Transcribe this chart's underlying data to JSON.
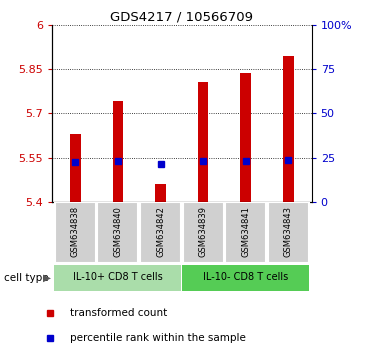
{
  "title": "GDS4217 / 10566709",
  "samples": [
    "GSM634838",
    "GSM634840",
    "GSM634842",
    "GSM634839",
    "GSM634841",
    "GSM634843"
  ],
  "bar_tops": [
    5.63,
    5.74,
    5.46,
    5.805,
    5.835,
    5.895
  ],
  "bar_bottom": 5.4,
  "percentile_values": [
    5.535,
    5.537,
    5.527,
    5.537,
    5.537,
    5.543
  ],
  "ylim": [
    5.4,
    6.0
  ],
  "yticks_left": [
    5.4,
    5.55,
    5.7,
    5.85,
    6.0
  ],
  "ytick_labels_left": [
    "5.4",
    "5.55",
    "5.7",
    "5.85",
    "6"
  ],
  "yticks_right_pct": [
    0,
    25,
    50,
    75,
    100
  ],
  "ytick_labels_right": [
    "0",
    "25",
    "50",
    "75",
    "100%"
  ],
  "bar_color": "#cc0000",
  "percentile_color": "#0000cc",
  "group1_label": "IL-10+ CD8 T cells",
  "group2_label": "IL-10- CD8 T cells",
  "group1_indices": [
    0,
    1,
    2
  ],
  "group2_indices": [
    3,
    4,
    5
  ],
  "group1_color": "#aaddaa",
  "group2_color": "#55cc55",
  "cell_type_label": "cell type",
  "legend_red_label": "transformed count",
  "legend_blue_label": "percentile rank within the sample",
  "bg_color": "#ffffff",
  "tick_color_left": "#cc0000",
  "tick_color_right": "#0000cc",
  "bar_width": 0.25
}
